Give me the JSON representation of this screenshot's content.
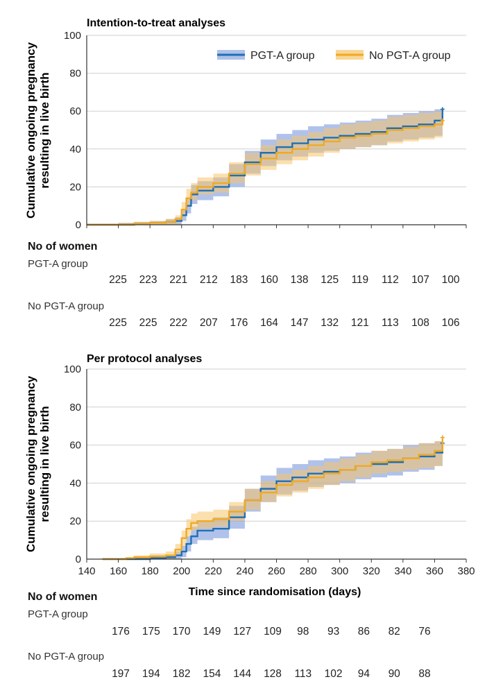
{
  "chart_data": [
    {
      "type": "line",
      "title": "Intention-to-treat analyses",
      "ylabel": "Cumulative ongoing pregnancy resulting in live birth",
      "xlabel": "",
      "xlim": [
        140,
        380
      ],
      "ylim": [
        0,
        100
      ],
      "y_ticks": [
        0,
        20,
        40,
        60,
        80,
        100
      ],
      "x_ticks": [],
      "grid": "horizontal",
      "legend_position": "top-right",
      "series": [
        {
          "name": "PGT-A group",
          "color": "#1f6fb5",
          "band_color": "#6f8fd8",
          "x": [
            140,
            150,
            160,
            170,
            180,
            190,
            196,
            200,
            203,
            206,
            210,
            220,
            230,
            240,
            250,
            260,
            270,
            280,
            290,
            300,
            310,
            320,
            330,
            340,
            350,
            360,
            365
          ],
          "y": [
            0,
            0,
            0,
            0.5,
            1,
            1.5,
            2,
            5,
            10,
            16,
            18,
            20,
            26,
            33,
            38,
            41,
            43,
            45,
            46,
            47,
            48,
            49,
            51,
            52,
            53,
            55,
            61
          ],
          "lower": [
            0,
            0,
            0,
            0,
            0,
            0,
            0,
            2,
            6,
            11,
            13,
            15,
            20,
            27,
            31,
            34,
            36,
            38,
            39,
            40,
            41,
            42,
            44,
            45,
            46,
            47,
            48
          ],
          "upper": [
            0.5,
            0.5,
            1,
            1.5,
            2,
            3,
            4,
            8,
            14,
            21,
            23,
            25,
            32,
            39,
            45,
            48,
            50,
            52,
            53,
            54,
            55,
            56,
            58,
            59,
            60,
            61,
            62
          ]
        },
        {
          "name": "No PGT-A group",
          "color": "#f0a924",
          "band_color": "#f7c56a",
          "x": [
            140,
            150,
            160,
            170,
            180,
            190,
            196,
            200,
            203,
            206,
            210,
            220,
            230,
            240,
            250,
            260,
            270,
            280,
            290,
            300,
            310,
            320,
            330,
            340,
            350,
            360,
            365
          ],
          "y": [
            0,
            0,
            0,
            0.5,
            1,
            1.5,
            3,
            8,
            14,
            17,
            20,
            22,
            27,
            32,
            35,
            38,
            40,
            42,
            44,
            46,
            47,
            48,
            50,
            51,
            52,
            53,
            55
          ],
          "lower": [
            0,
            0,
            0,
            0,
            0,
            0,
            1,
            5,
            10,
            13,
            16,
            17,
            22,
            26,
            29,
            32,
            34,
            36,
            38,
            40,
            41,
            42,
            43,
            44,
            45,
            46,
            47
          ],
          "upper": [
            0.5,
            0.5,
            1,
            1.5,
            2,
            3,
            5,
            12,
            19,
            22,
            25,
            27,
            33,
            38,
            42,
            45,
            47,
            49,
            51,
            53,
            54,
            55,
            57,
            58,
            59,
            60,
            61
          ]
        }
      ]
    },
    {
      "type": "line",
      "title": "Per protocol analyses",
      "ylabel": "Cumulative ongoing pregnancy resulting in live birth",
      "xlabel": "Time since randomisation (days)",
      "xlim": [
        140,
        380
      ],
      "ylim": [
        0,
        100
      ],
      "y_ticks": [
        0,
        20,
        40,
        60,
        80,
        100
      ],
      "x_ticks": [
        140,
        160,
        180,
        200,
        220,
        240,
        260,
        280,
        300,
        320,
        340,
        360,
        380
      ],
      "grid": "horizontal",
      "series": [
        {
          "name": "PGT-A group",
          "color": "#1f6fb5",
          "band_color": "#6f8fd8",
          "x": [
            150,
            160,
            170,
            180,
            190,
            196,
            200,
            203,
            206,
            210,
            220,
            230,
            240,
            250,
            260,
            270,
            280,
            290,
            300,
            310,
            320,
            330,
            340,
            350,
            360,
            365
          ],
          "y": [
            0,
            0,
            0,
            0.5,
            1,
            2,
            4,
            8,
            12,
            15,
            16,
            22,
            31,
            37,
            41,
            43,
            45,
            46,
            47,
            49,
            50,
            51,
            53,
            54,
            56,
            61
          ],
          "lower": [
            0,
            0,
            0,
            0,
            0,
            0,
            1,
            4,
            8,
            10,
            11,
            16,
            25,
            30,
            34,
            36,
            38,
            39,
            40,
            42,
            43,
            44,
            46,
            47,
            49,
            50
          ],
          "upper": [
            0.5,
            0.5,
            1,
            1.5,
            2,
            4,
            7,
            12,
            17,
            20,
            22,
            28,
            37,
            44,
            48,
            50,
            52,
            53,
            54,
            56,
            57,
            58,
            60,
            61,
            62,
            63
          ]
        },
        {
          "name": "No PGT-A group",
          "color": "#f0a924",
          "band_color": "#f7c56a",
          "x": [
            150,
            160,
            165,
            170,
            180,
            190,
            196,
            200,
            203,
            206,
            210,
            220,
            230,
            240,
            250,
            260,
            270,
            280,
            290,
            300,
            310,
            320,
            330,
            340,
            350,
            360,
            365
          ],
          "y": [
            0,
            0,
            0.5,
            1,
            1.5,
            2,
            5,
            11,
            16,
            19,
            20,
            21,
            25,
            31,
            35,
            39,
            41,
            43,
            45,
            47,
            49,
            51,
            52,
            53,
            55,
            57,
            64
          ],
          "lower": [
            0,
            0,
            0,
            0,
            0,
            0,
            2,
            7,
            12,
            15,
            16,
            17,
            20,
            26,
            30,
            33,
            35,
            37,
            39,
            41,
            43,
            45,
            46,
            47,
            48,
            49,
            50
          ],
          "upper": [
            0.5,
            0.5,
            1,
            2,
            3,
            4,
            8,
            15,
            21,
            24,
            25,
            26,
            30,
            37,
            41,
            45,
            47,
            49,
            51,
            53,
            55,
            57,
            58,
            59,
            61,
            62,
            65
          ]
        }
      ]
    }
  ],
  "risk_tables": [
    {
      "header": "No of women",
      "groups": [
        {
          "label": "PGT-A group",
          "values": [
            "225",
            "223",
            "221",
            "212",
            "183",
            "160",
            "138",
            "125",
            "119",
            "112",
            "107",
            "100"
          ]
        },
        {
          "label": "No PGT-A group",
          "values": [
            "225",
            "225",
            "222",
            "207",
            "176",
            "164",
            "147",
            "132",
            "121",
            "113",
            "108",
            "106"
          ]
        }
      ]
    },
    {
      "header": "No of women",
      "groups": [
        {
          "label": "PGT-A group",
          "values": [
            "176",
            "175",
            "170",
            "149",
            "127",
            "109",
            "98",
            "93",
            "86",
            "82",
            "76"
          ]
        },
        {
          "label": "No PGT-A group",
          "values": [
            "197",
            "194",
            "182",
            "154",
            "144",
            "128",
            "113",
            "102",
            "94",
            "90",
            "88"
          ]
        }
      ]
    }
  ]
}
